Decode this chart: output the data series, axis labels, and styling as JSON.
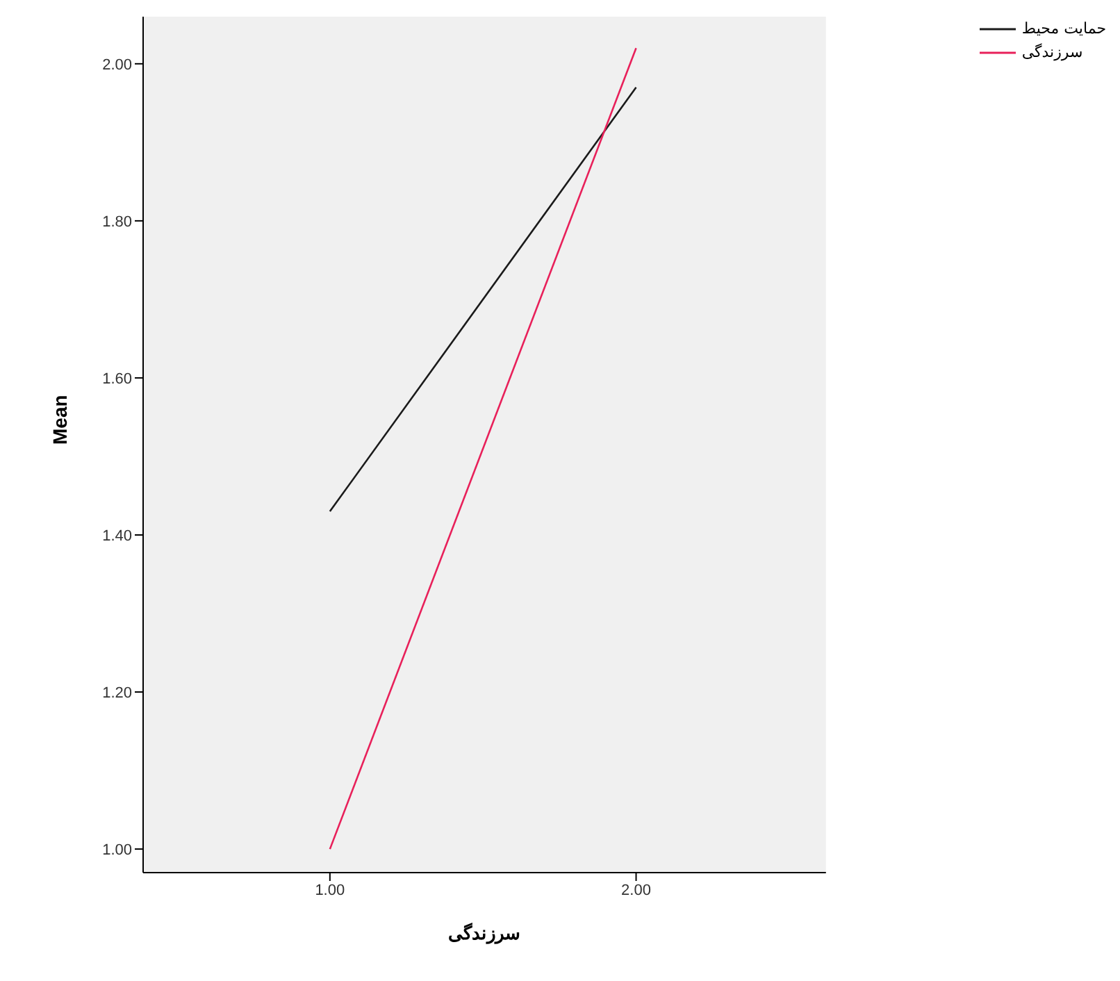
{
  "chart_data": {
    "type": "line",
    "xlabel": "سرزندگی",
    "ylabel": "Mean",
    "x": [
      1,
      2
    ],
    "series": [
      {
        "name": "حمایت محیط",
        "color": "#1a1a1a",
        "values": [
          1.43,
          1.97
        ]
      },
      {
        "name": "سرزندگی",
        "color": "#e8205a",
        "values": [
          1.0,
          2.02
        ]
      }
    ],
    "xlim": [
      0.39,
      2.62
    ],
    "xticks": [
      {
        "value": 1,
        "label": "1.00"
      },
      {
        "value": 2,
        "label": "2.00"
      }
    ],
    "ylim": [
      0.97,
      2.06
    ],
    "yticks": [
      {
        "value": 1,
        "label": "1.00"
      },
      {
        "value": 1.2,
        "label": "1.20"
      },
      {
        "value": 1.4,
        "label": "1.40"
      },
      {
        "value": 1.6,
        "label": "1.60"
      },
      {
        "value": 1.8,
        "label": "1.80"
      },
      {
        "value": 2,
        "label": "2.00"
      }
    ],
    "legend": "top right",
    "marker": "none",
    "line_style": "solid"
  }
}
